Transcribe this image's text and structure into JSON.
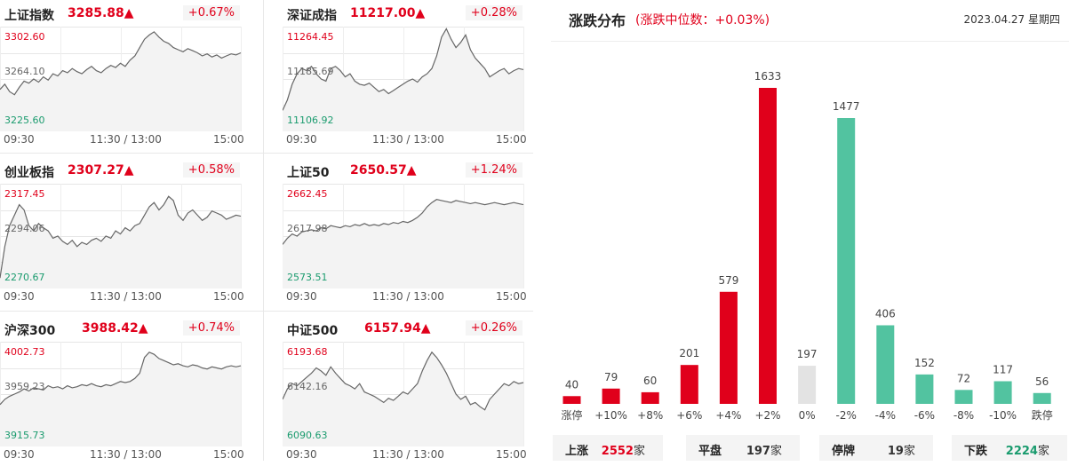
{
  "panels": [
    {
      "name": "上证指数",
      "value": "3285.88▲",
      "change": "+0.67%",
      "y_high": "3302.60",
      "y_mid": "3264.10",
      "y_low": "3225.60"
    },
    {
      "name": "深证成指",
      "value": "11217.00▲",
      "change": "+0.28%",
      "y_high": "11264.45",
      "y_mid": "11185.69",
      "y_low": "11106.92"
    },
    {
      "name": "创业板指",
      "value": "2307.27▲",
      "change": "+0.58%",
      "y_high": "2317.45",
      "y_mid": "2294.06",
      "y_low": "2270.67"
    },
    {
      "name": "上证50",
      "value": "2650.57▲",
      "change": "+1.24%",
      "y_high": "2662.45",
      "y_mid": "2617.98",
      "y_low": "2573.51"
    },
    {
      "name": "沪深300",
      "value": "3988.42▲",
      "change": "+0.74%",
      "y_high": "4002.73",
      "y_mid": "3959.23",
      "y_low": "3915.73"
    },
    {
      "name": "中证500",
      "value": "6157.94▲",
      "change": "+0.26%",
      "y_high": "6193.68",
      "y_mid": "6142.16",
      "y_low": "6090.63"
    }
  ],
  "time_axis": {
    "start": "09:30",
    "mid": "11:30 / 13:00",
    "end": "15:00"
  },
  "distribution": {
    "title": "涨跌分布",
    "subtitle": "(涨跌中位数：+0.03%)",
    "date": "2023.04.27  星期四"
  },
  "summary": [
    {
      "label": "上涨",
      "value": "2552",
      "unit": "家",
      "color": "#e0001b"
    },
    {
      "label": "平盘",
      "value": "197",
      "unit": "家",
      "color": "#333333"
    },
    {
      "label": "停牌",
      "value": "19",
      "unit": "家",
      "color": "#333333"
    },
    {
      "label": "下跌",
      "value": "2224",
      "unit": "家",
      "color": "#1a9b6e"
    }
  ],
  "chart_data": {
    "type": "bar",
    "categories": [
      "涨停",
      "+10%",
      "+8%",
      "+6%",
      "+4%",
      "+2%",
      "0%",
      "-2%",
      "-4%",
      "-6%",
      "-8%",
      "-10%",
      "跌停"
    ],
    "values": [
      40,
      79,
      60,
      201,
      579,
      1633,
      197,
      1477,
      406,
      152,
      72,
      117,
      56
    ],
    "colors": [
      "#e0001b",
      "#e0001b",
      "#e0001b",
      "#e0001b",
      "#e0001b",
      "#e0001b",
      "#e3e3e3",
      "#52c3a0",
      "#52c3a0",
      "#52c3a0",
      "#52c3a0",
      "#52c3a0",
      "#52c3a0"
    ]
  }
}
